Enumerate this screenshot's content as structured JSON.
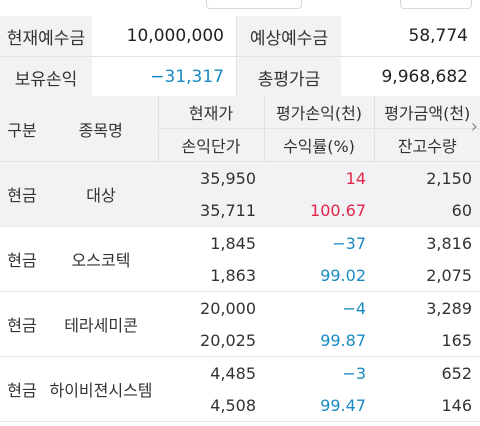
{
  "summary": {
    "deposit_label": "현재예수금",
    "deposit_value": "10,000,000",
    "expected_deposit_label": "예상예수금",
    "expected_deposit_value": "58,774",
    "holding_pl_label": "보유손익",
    "holding_pl_value": "−31,317",
    "total_eval_label": "총평가금",
    "total_eval_value": "9,968,682"
  },
  "table": {
    "headers": {
      "kind": "구분",
      "name": "종목명",
      "price": "현재가",
      "breakeven": "손익단가",
      "pl": "평가손익(천)",
      "rate": "수익률(%)",
      "eval_amount": "평가금액(천)",
      "qty": "잔고수량"
    },
    "rows": [
      {
        "kind": "현금",
        "name": "대상",
        "price": "35,950",
        "breakeven": "35,711",
        "pl": "14",
        "rate": "100.67",
        "eval_amount": "2,150",
        "qty": "60",
        "pl_color": "#e0254b",
        "rate_color": "#e0254b"
      },
      {
        "kind": "현금",
        "name": "오스코텍",
        "price": "1,845",
        "breakeven": "1,863",
        "pl": "−37",
        "rate": "99.02",
        "eval_amount": "3,816",
        "qty": "2,075",
        "pl_color": "#1a8ac4",
        "rate_color": "#1a8ac4"
      },
      {
        "kind": "현금",
        "name": "테라세미콘",
        "price": "20,000",
        "breakeven": "20,025",
        "pl": "−4",
        "rate": "99.87",
        "eval_amount": "3,289",
        "qty": "165",
        "pl_color": "#1a8ac4",
        "rate_color": "#1a8ac4"
      },
      {
        "kind": "현금",
        "name": "하이비젼시스템",
        "price": "4,485",
        "breakeven": "4,508",
        "pl": "−3",
        "rate": "99.47",
        "eval_amount": "652",
        "qty": "146",
        "pl_color": "#1a8ac4",
        "rate_color": "#1a8ac4"
      }
    ]
  },
  "icons": {
    "scroll_right": "chevron-right-icon"
  }
}
